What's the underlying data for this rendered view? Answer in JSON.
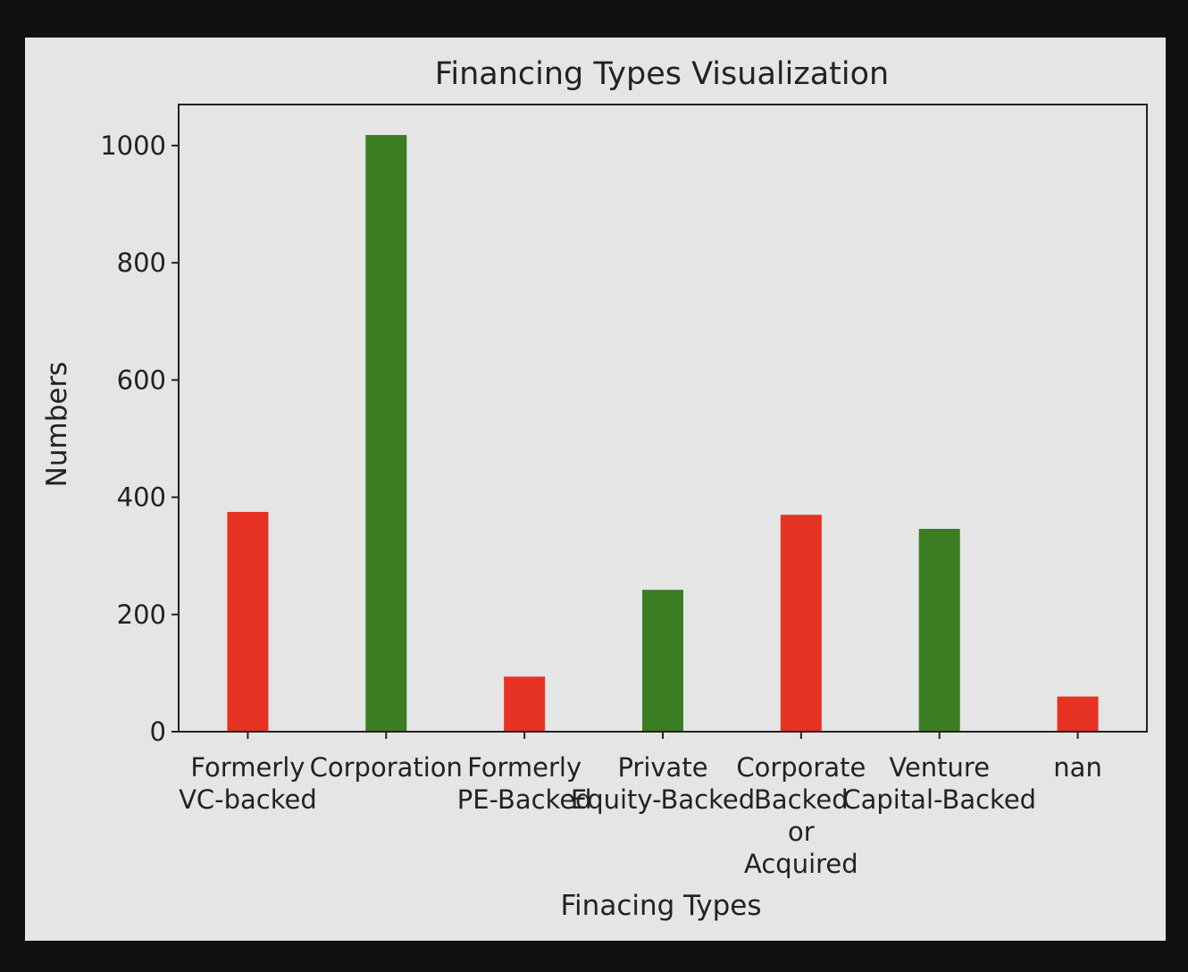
{
  "chart_data": {
    "type": "bar",
    "title": "Financing Types Visualization",
    "xlabel": "Finacing Types",
    "ylabel": "Numbers",
    "ylim": [
      0,
      1070
    ],
    "yticks": [
      0,
      200,
      400,
      600,
      800,
      1000
    ],
    "categories": [
      [
        "Formerly",
        "VC-backed"
      ],
      [
        "Corporation"
      ],
      [
        "Formerly",
        "PE-Backed"
      ],
      [
        "Private",
        "Equity-Backed"
      ],
      [
        "Corporate",
        "Backed",
        "or",
        "Acquired"
      ],
      [
        "Venture",
        "Capital-Backed"
      ],
      [
        "nan"
      ]
    ],
    "values": [
      375,
      1018,
      94,
      242,
      370,
      346,
      60
    ],
    "bar_colors": [
      "#e63222",
      "#3a7d22",
      "#e63222",
      "#3a7d22",
      "#e63222",
      "#3a7d22",
      "#e63222"
    ],
    "grid": false
  }
}
